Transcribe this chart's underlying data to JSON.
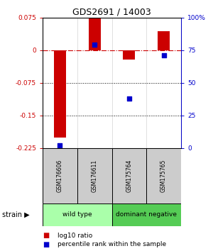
{
  "title": "GDS2691 / 14003",
  "samples": [
    "GSM176606",
    "GSM176611",
    "GSM175764",
    "GSM175765"
  ],
  "log10_ratio": [
    -0.2,
    0.075,
    -0.022,
    0.043
  ],
  "percentile_rank": [
    2.0,
    79.0,
    38.0,
    71.0
  ],
  "bar_color": "#cc0000",
  "dot_color": "#0000cc",
  "ylim_left": [
    -0.225,
    0.075
  ],
  "ylim_right": [
    0,
    100
  ],
  "yticks_left": [
    0.075,
    0.0,
    -0.075,
    -0.15,
    -0.225
  ],
  "yticks_left_labels": [
    "0.075",
    "0",
    "-0.075",
    "-0.15",
    "-0.225"
  ],
  "yticks_right": [
    100,
    75,
    50,
    25,
    0
  ],
  "yticks_right_labels": [
    "100%",
    "75",
    "50",
    "25",
    "0"
  ],
  "groups": [
    {
      "label": "wild type",
      "samples": [
        0,
        1
      ],
      "color": "#aaffaa"
    },
    {
      "label": "dominant negative",
      "samples": [
        2,
        3
      ],
      "color": "#55cc55"
    }
  ],
  "strain_label": "strain",
  "legend_ratio_label": "log10 ratio",
  "legend_pct_label": "percentile rank within the sample",
  "dotted_lines": [
    -0.075,
    -0.15
  ],
  "bar_width": 0.35,
  "sample_box_color": "#cccccc",
  "bg_color": "#ffffff"
}
